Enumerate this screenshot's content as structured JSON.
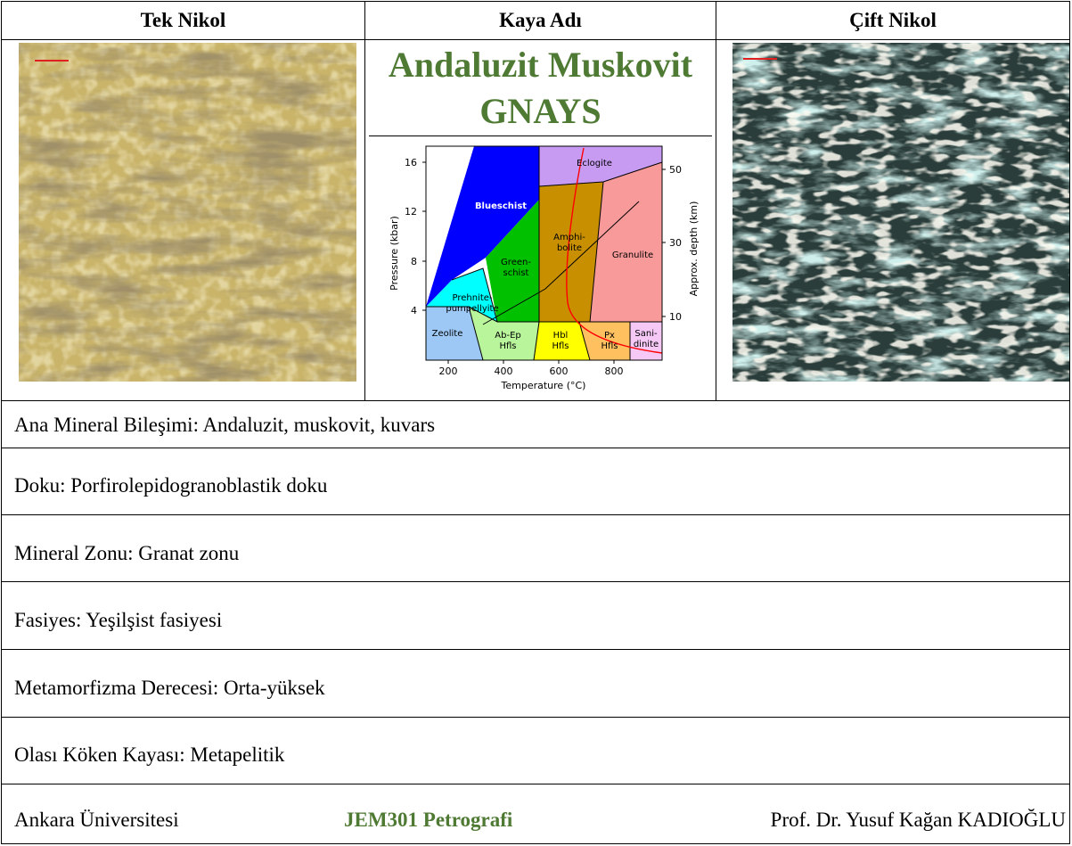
{
  "header": {
    "col1": "Tek Nikol",
    "col2": "Kaya Adı",
    "col3": "Çift Nikol"
  },
  "rock_name": {
    "line1": "Andaluzit Muskovit",
    "line2": "GNAYS"
  },
  "diagram": {
    "y_ticks": [
      "16",
      "12",
      "8",
      "4"
    ],
    "x_ticks": [
      "200",
      "400",
      "600",
      "800"
    ],
    "depth_ticks": [
      "50",
      "30",
      "10"
    ],
    "ylabel": "Pressure (kbar)",
    "xlabel": "Temperature (°C)",
    "y2label": "Approx. depth (km)",
    "facies": {
      "blueschist": "Blueschist",
      "eclogite": "Eclogite",
      "amphibolite1": "Amphi-",
      "amphibolite2": "bolite",
      "granulite": "Granulite",
      "greenschist1": "Green-",
      "greenschist2": "schist",
      "prehnite1": "Prehnite-",
      "prehnite2": "pumpellyite",
      "zeolite": "Zeolite",
      "abep1": "Ab-Ep",
      "abep2": "Hfls",
      "hbl1": "Hbl",
      "hbl2": "Hfls",
      "px1": "Px",
      "px2": "Hfls",
      "sani1": "Sani-",
      "sani2": "dinite"
    },
    "colors": {
      "blueschist": "#0000ff",
      "eclogite": "#c79bf2",
      "amphibolite": "#c89000",
      "granulite": "#f99a9a",
      "greenschist": "#00c000",
      "prehnite": "#00ffff",
      "zeolite": "#9dc8f5",
      "abep": "#b9f59b",
      "hbl": "#ffff00",
      "px": "#ffc060",
      "sani": "#f5c8f5"
    }
  },
  "rows": [
    "Ana Mineral Bileşimi: Andaluzit, muskovit, kuvars",
    "Doku: Porfirolepidogranoblastik doku",
    "Mineral Zonu: Granat zonu",
    "Fasiyes: Yeşilşist fasiyesi",
    "Metamorfizma Derecesi: Orta-yüksek",
    "Olası Köken Kayası: Metapelitik"
  ],
  "footer": {
    "left": "Ankara Üniversitesi",
    "center": "JEM301 Petrografi",
    "right": "Prof. Dr. Yusuf Kağan KADIOĞLU"
  },
  "photo_colors": {
    "ppl_base": "#c9b46a",
    "ppl_dark": "#5a4a2a",
    "xpl_base": "#2a3d3a",
    "xpl_light": "#8fcfc8"
  }
}
